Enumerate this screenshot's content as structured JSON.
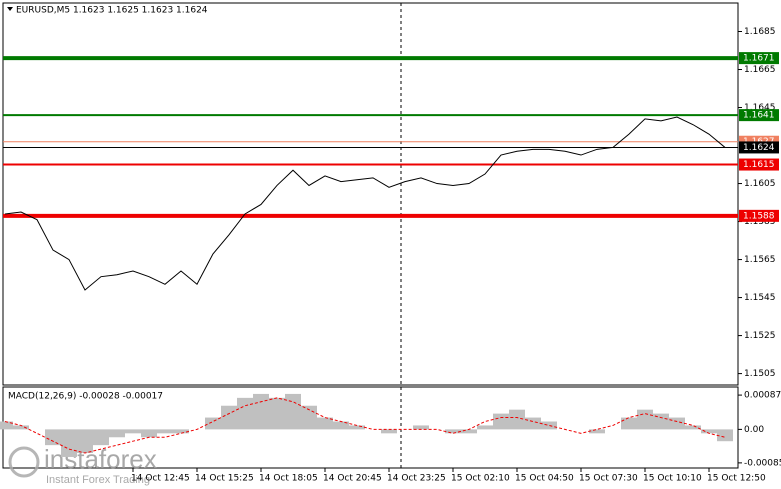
{
  "chart_data": [
    {
      "type": "line",
      "title": "EURUSD,M5  1.1623 1.1625 1.1623 1.1624",
      "color": "#000000",
      "categories": [
        null,
        null,
        null,
        null,
        null,
        null,
        null,
        null,
        "14 Oct 12:45",
        null,
        null,
        null,
        "14 Oct 15:25",
        null,
        null,
        null,
        "14 Oct 18:05",
        null,
        null,
        null,
        "14 Oct 20:45",
        null,
        null,
        null,
        "14 Oct 23:25",
        null,
        null,
        null,
        "15 Oct 02:10",
        null,
        null,
        null,
        "15 Oct 04:50",
        null,
        null,
        null,
        "15 Oct 07:30",
        null,
        null,
        null,
        "15 Oct 10:10",
        null,
        null,
        null,
        "15 Oct 12:50",
        null
      ],
      "values": [
        1.1589,
        1.159,
        1.1586,
        1.157,
        1.1565,
        1.1549,
        1.1556,
        1.1557,
        1.1559,
        1.1556,
        1.1552,
        1.1559,
        1.1552,
        1.1568,
        1.1578,
        1.1589,
        1.1594,
        1.1604,
        1.1612,
        1.1604,
        1.1609,
        1.1606,
        1.1607,
        1.1608,
        1.1603,
        1.1606,
        1.1608,
        1.1605,
        1.1604,
        1.1605,
        1.161,
        1.162,
        1.1622,
        1.1623,
        1.1623,
        1.1622,
        1.162,
        1.1623,
        1.1624,
        1.1631,
        1.1639,
        1.1638,
        1.164,
        1.1636,
        1.1631,
        1.1624
      ],
      "ylim": [
        1.1499,
        1.17
      ],
      "yticks": [
        1.1505,
        1.1525,
        1.1545,
        1.1565,
        1.1585,
        1.1605,
        1.1645,
        1.1665,
        1.1685
      ],
      "levels": [
        {
          "value": 1.1671,
          "color": "#007a00",
          "style": "thick"
        },
        {
          "value": 1.1641,
          "color": "#007a00",
          "style": "normal"
        },
        {
          "value": 1.1627,
          "color": "#f08060",
          "style": "thin"
        },
        {
          "value": 1.1624,
          "color": "#000000",
          "style": "thin"
        },
        {
          "value": 1.1615,
          "color": "#ee0000",
          "style": "normal"
        },
        {
          "value": 1.1588,
          "color": "#ee0000",
          "style": "thick"
        }
      ]
    },
    {
      "type": "macd",
      "title": "MACD(12,26,9) -0.00028 -0.00017",
      "series": [
        {
          "color": "#c0c0c0",
          "values": [
            0.0002,
            0.0001,
            0.0,
            -0.0004,
            -0.0007,
            -0.0006,
            -0.0004,
            -0.0002,
            -0.0001,
            -0.0002,
            -0.0001,
            -0.0001,
            0.0,
            0.0003,
            0.0006,
            0.0008,
            0.0009,
            0.0008,
            0.0009,
            0.0006,
            0.0003,
            0.0002,
            0.0001,
            0.0,
            -0.0001,
            0.0,
            0.0001,
            0.0,
            -0.0001,
            -0.0001,
            0.0001,
            0.0004,
            0.0005,
            0.0003,
            0.0002,
            0.0,
            0.0,
            -0.0001,
            0.0,
            0.0003,
            0.0005,
            0.0004,
            0.0003,
            0.0001,
            -0.0001,
            -0.0003
          ]
        },
        {
          "color": "#ee0000",
          "values": [
            0.0002,
            0.0001,
            -0.0001,
            -0.0003,
            -0.0005,
            -0.0006,
            -0.0005,
            -0.0004,
            -0.0003,
            -0.0002,
            -0.0002,
            -0.0001,
            0.0,
            0.0002,
            0.0004,
            0.0006,
            0.0007,
            0.0008,
            0.0007,
            0.0005,
            0.0003,
            0.0002,
            0.0001,
            0.0,
            0.0,
            0.0,
            0.0,
            0.0,
            -0.0001,
            0.0,
            0.0002,
            0.0003,
            0.0003,
            0.0002,
            0.0001,
            0.0,
            -0.0001,
            0.0,
            0.0001,
            0.0003,
            0.0004,
            0.0003,
            0.0002,
            0.0001,
            -0.0001,
            -0.0002
          ]
        }
      ],
      "ylim": [
        -0.00098,
        0.00105
      ],
      "yticks": [
        -0.00085,
        {
          "value": 0,
          "label": "0.00"
        },
        0.00087
      ]
    }
  ],
  "watermark": {
    "brand": "instaforex",
    "tagline": "Instant Forex Trading"
  }
}
